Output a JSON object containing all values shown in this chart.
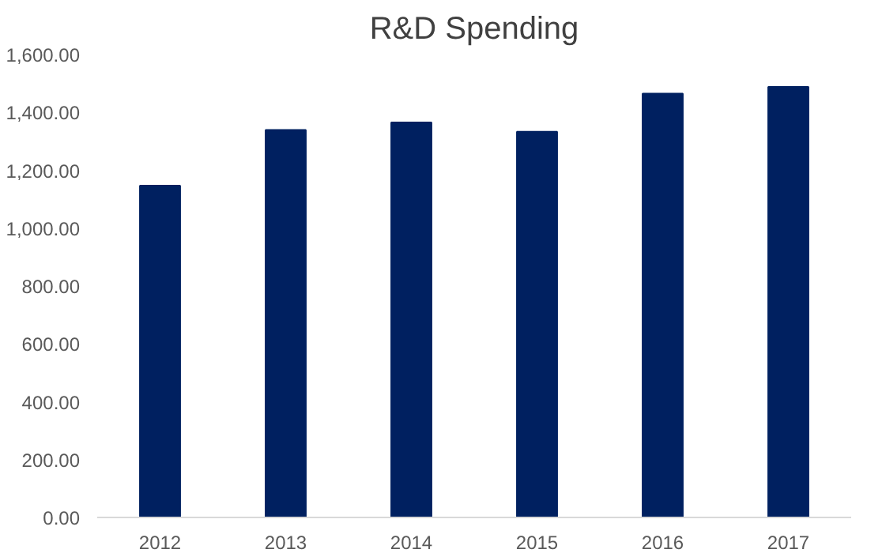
{
  "chart_data": {
    "type": "bar",
    "title": "R&D Spending",
    "categories": [
      "2012",
      "2013",
      "2014",
      "2015",
      "2016",
      "2017"
    ],
    "values": [
      1147,
      1339,
      1365,
      1333,
      1465,
      1488
    ],
    "color": "#002060",
    "ylim": [
      0,
      1600
    ],
    "yticks": [
      {
        "value": 0,
        "label": "0.00"
      },
      {
        "value": 200,
        "label": "200.00"
      },
      {
        "value": 400,
        "label": "400.00"
      },
      {
        "value": 600,
        "label": "600.00"
      },
      {
        "value": 800,
        "label": "800.00"
      },
      {
        "value": 1000,
        "label": "1,000.00"
      },
      {
        "value": 1200,
        "label": "1,200.00"
      },
      {
        "value": 1400,
        "label": "1,400.00"
      },
      {
        "value": 1600,
        "label": "1,600.00"
      }
    ],
    "grid": false
  }
}
